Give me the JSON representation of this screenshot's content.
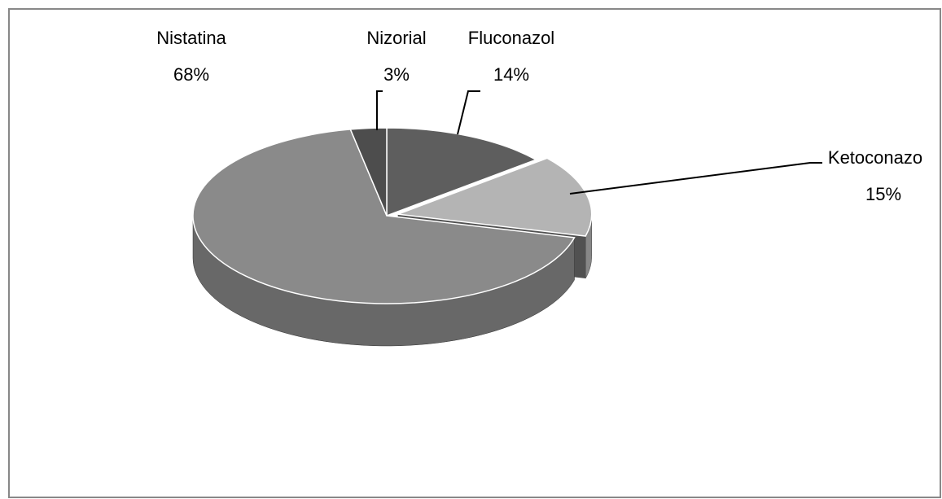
{
  "chart_data": {
    "type": "pie",
    "categories": [
      "Fluconazol",
      "Ketoconazo",
      "Nistatina",
      "Nizorial"
    ],
    "values": [
      14,
      15,
      68,
      3
    ],
    "value_labels": [
      "14%",
      "15%",
      "68%",
      "3%"
    ],
    "colors": [
      "#5e5e5e",
      "#b4b4b4",
      "#8a8a8a",
      "#4d4d4d"
    ]
  }
}
